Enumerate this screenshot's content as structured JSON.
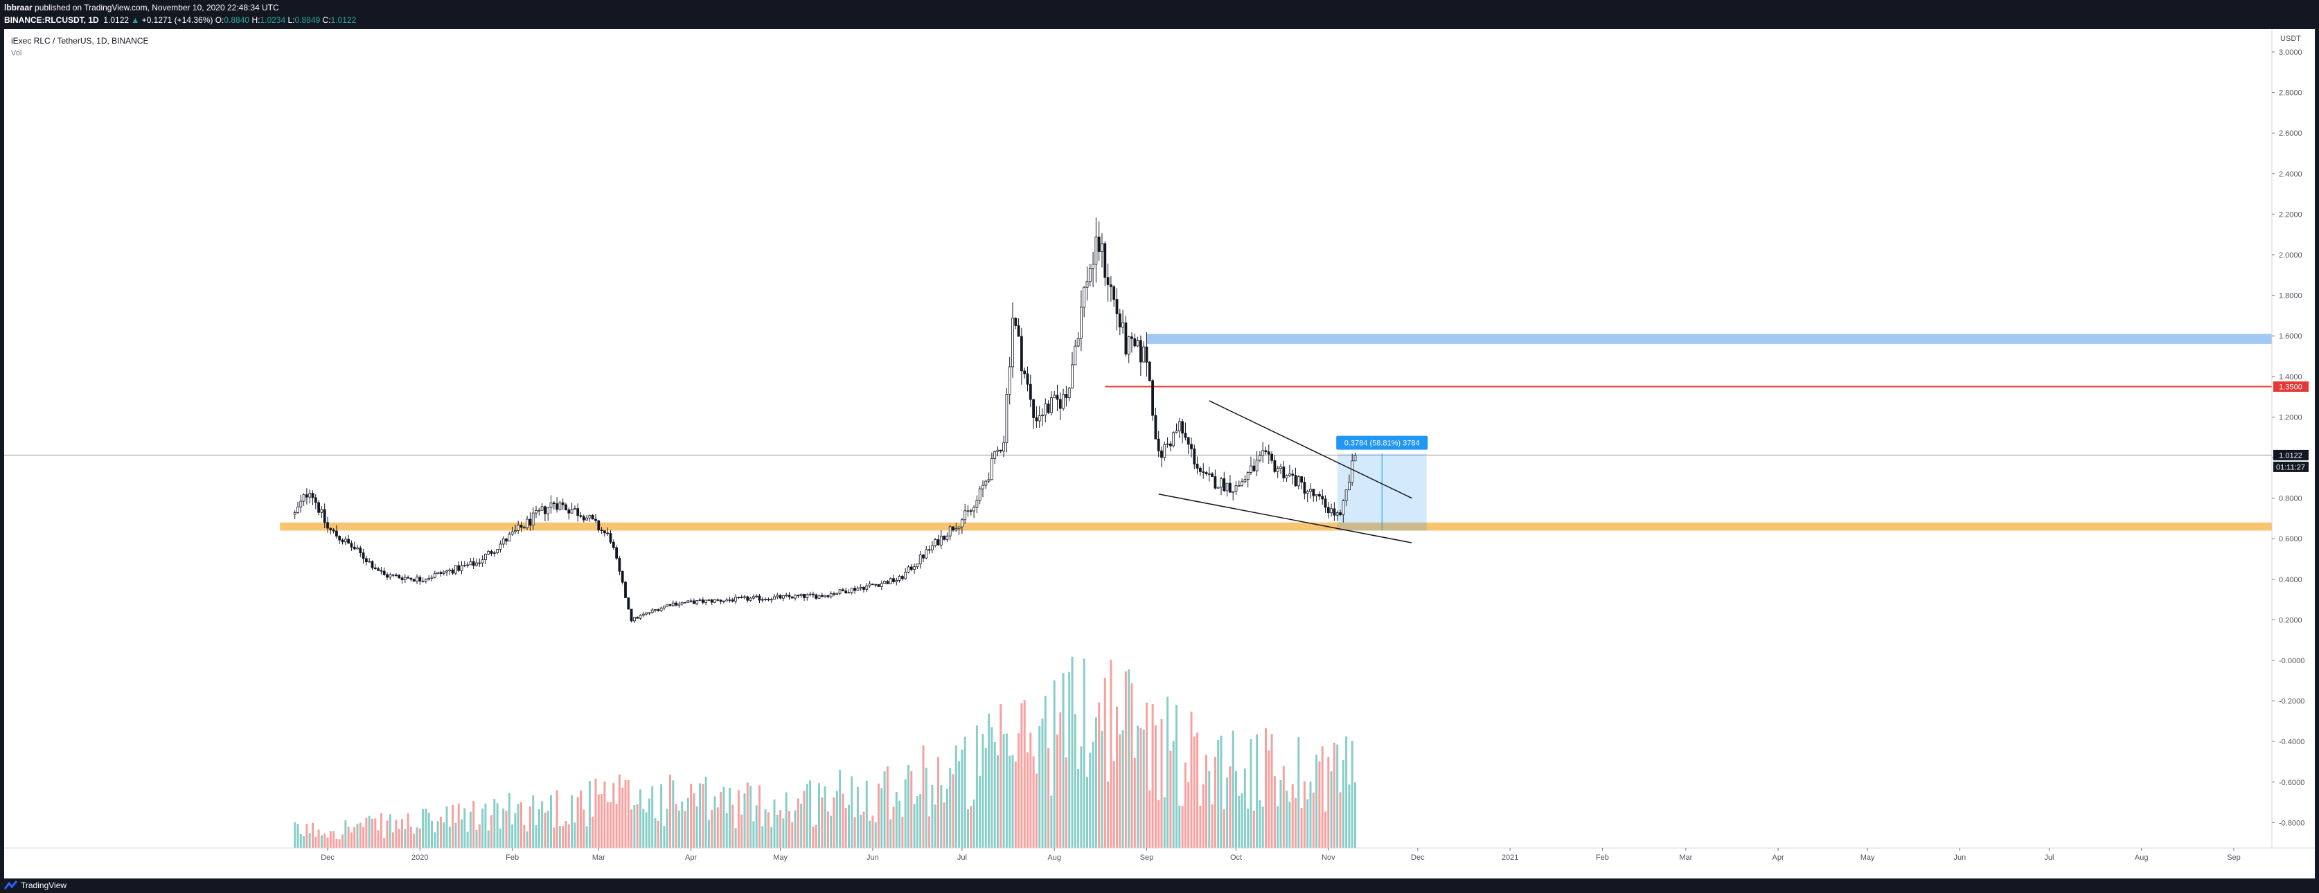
{
  "header": {
    "author": "lbbraar",
    "published": " published on TradingView.com, November 10, 2020 22:48:34 UTC",
    "symbol": "BINANCE:RLCUSDT, 1D",
    "last": "1.0122",
    "change": "+0.1271 (+14.36%)",
    "o_label": "O:",
    "o": "0.8840",
    "h_label": "H:",
    "h": "1.0234",
    "l_label": "L:",
    "l": "0.8849",
    "c_label": "C:",
    "c": "1.0122"
  },
  "legend": {
    "title": "iExec RLC / TetherUS, 1D, BINANCE",
    "vol": "Vol"
  },
  "scale": {
    "currency": "USDT",
    "ticks": [
      "3.0000",
      "2.8000",
      "2.6000",
      "2.4000",
      "2.2000",
      "2.0000",
      "1.8000",
      "1.6000",
      "1.4000",
      "1.2000",
      "1.0000",
      "0.8000",
      "0.6000",
      "0.4000",
      "0.2000",
      "-0.0000",
      "-0.2000",
      "-0.4000",
      "-0.6000",
      "-0.8000"
    ],
    "level_label": "1.3500",
    "price_label": "1.0122",
    "countdown": "01:11:27"
  },
  "time_axis": [
    "Dec",
    "2020",
    "Feb",
    "Mar",
    "Apr",
    "May",
    "Jun",
    "Jul",
    "Aug",
    "Sep",
    "Oct",
    "Nov",
    "Dec",
    "2021",
    "Feb",
    "Mar",
    "Apr",
    "May",
    "Jun",
    "Jul",
    "Aug",
    "Sep"
  ],
  "measure_label": "0.3784 (58.81%) 3784",
  "footer": {
    "brand": "TradingView"
  },
  "colors": {
    "bg": "#131722",
    "up": "#26a69a",
    "down": "#ef5350",
    "support": "#f5b041",
    "resistance": "#90bff2",
    "level": "#e53935",
    "measure": "#2196f3"
  },
  "chart_data": {
    "type": "candlestick",
    "timeframe": "1D",
    "ylim": [
      -0.9,
      3.1
    ],
    "close_path": [
      [
        "2019-11-20",
        0.72
      ],
      [
        "2019-11-25",
        0.85
      ],
      [
        "2019-12-01",
        0.65
      ],
      [
        "2019-12-10",
        0.55
      ],
      [
        "2019-12-20",
        0.42
      ],
      [
        "2020-01-01",
        0.4
      ],
      [
        "2020-01-20",
        0.48
      ],
      [
        "2020-02-01",
        0.62
      ],
      [
        "2020-02-15",
        0.78
      ],
      [
        "2020-02-25",
        0.72
      ],
      [
        "2020-03-05",
        0.6
      ],
      [
        "2020-03-12",
        0.2
      ],
      [
        "2020-03-25",
        0.28
      ],
      [
        "2020-04-15",
        0.3
      ],
      [
        "2020-05-15",
        0.32
      ],
      [
        "2020-06-10",
        0.4
      ],
      [
        "2020-06-25",
        0.62
      ],
      [
        "2020-07-05",
        0.75
      ],
      [
        "2020-07-15",
        1.1
      ],
      [
        "2020-07-18",
        1.7
      ],
      [
        "2020-07-25",
        1.2
      ],
      [
        "2020-08-05",
        1.3
      ],
      [
        "2020-08-12",
        1.9
      ],
      [
        "2020-08-16",
        2.05
      ],
      [
        "2020-08-25",
        1.55
      ],
      [
        "2020-09-01",
        1.5
      ],
      [
        "2020-09-05",
        1.0
      ],
      [
        "2020-09-12",
        1.15
      ],
      [
        "2020-09-20",
        0.9
      ],
      [
        "2020-10-01",
        0.85
      ],
      [
        "2020-10-10",
        1.0
      ],
      [
        "2020-10-20",
        0.9
      ],
      [
        "2020-11-01",
        0.75
      ],
      [
        "2020-11-05",
        0.7
      ],
      [
        "2020-11-10",
        1.0122
      ]
    ],
    "volume_profile": [
      [
        "2019-11-20",
        0.1
      ],
      [
        "2020-01-01",
        0.15
      ],
      [
        "2020-03-12",
        0.3
      ],
      [
        "2020-05-01",
        0.25
      ],
      [
        "2020-07-01",
        0.45
      ],
      [
        "2020-08-15",
        0.85
      ],
      [
        "2020-09-15",
        0.55
      ],
      [
        "2020-10-15",
        0.45
      ],
      [
        "2020-11-10",
        0.5
      ]
    ],
    "levels": [
      {
        "label": "support zone",
        "from": 0.64,
        "to": 0.68
      },
      {
        "label": "resistance zone",
        "from": 1.56,
        "to": 1.61
      },
      {
        "label": "1.3500",
        "value": 1.35
      }
    ],
    "wedge": {
      "upper": [
        [
          "2020-09-22",
          1.28
        ],
        [
          "2020-11-29",
          0.8
        ]
      ],
      "lower": [
        [
          "2020-09-05",
          0.82
        ],
        [
          "2020-11-29",
          0.58
        ]
      ]
    },
    "measure": {
      "from_value": 0.64,
      "to_value": 1.0184,
      "start": "2020-11-04",
      "end": "2020-12-04",
      "label": "0.3784 (58.81%) 3784"
    },
    "last_price": 1.0122
  }
}
